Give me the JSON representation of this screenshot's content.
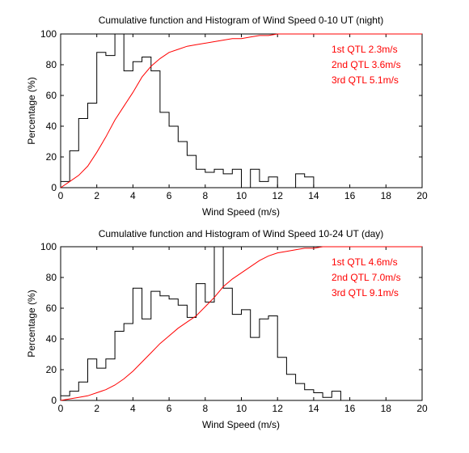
{
  "chart_data": [
    {
      "type": "line",
      "title": "Cumulative function and Histogram of Wind Speed 0-10 UT (night)",
      "xlabel": "Wind Speed (m/s)",
      "ylabel": "Percentage (%)",
      "xlim": [
        0,
        20
      ],
      "ylim": [
        0,
        100
      ],
      "xticks": [
        "0",
        "2",
        "4",
        "6",
        "8",
        "10",
        "12",
        "14",
        "16",
        "18",
        "20"
      ],
      "yticks": [
        "0",
        "20",
        "40",
        "60",
        "80",
        "100"
      ],
      "grid": false,
      "series": [
        {
          "kind": "histogram-step",
          "color": "#000000",
          "bin_width": 0.5,
          "bin_start": 0,
          "values": [
            4,
            24,
            45,
            55,
            88,
            86,
            100,
            76,
            82,
            85,
            76,
            49,
            40,
            30,
            21,
            12,
            10,
            12,
            9,
            12,
            0,
            12,
            4,
            7,
            0,
            0,
            9,
            7,
            0
          ]
        },
        {
          "kind": "cumulative",
          "color": "#ff0000",
          "x": [
            0,
            0.5,
            1,
            1.5,
            2,
            2.5,
            3,
            3.5,
            4,
            4.5,
            5,
            5.5,
            6,
            6.5,
            7,
            7.5,
            8,
            8.5,
            9,
            9.5,
            10,
            10.5,
            11,
            11.5,
            12,
            13,
            14,
            15,
            20
          ],
          "y": [
            0,
            4,
            8,
            14,
            23,
            33,
            44,
            53,
            62,
            72,
            79,
            84,
            88,
            90,
            92,
            93,
            94,
            95,
            96,
            97,
            97,
            98,
            99,
            99,
            100,
            100,
            100,
            100,
            100
          ]
        }
      ],
      "annotations": [
        "1st QTL 2.3m/s",
        "2nd QTL 3.6m/s",
        "3rd QTL 5.1m/s"
      ],
      "annotation_color": "#ff0000"
    },
    {
      "type": "line",
      "title": "Cumulative function and Histogram of Wind Speed 10-24 UT (day)",
      "xlabel": "Wind Speed (m/s)",
      "ylabel": "Percentage (%)",
      "xlim": [
        0,
        20
      ],
      "ylim": [
        0,
        100
      ],
      "xticks": [
        "0",
        "2",
        "4",
        "6",
        "8",
        "10",
        "12",
        "14",
        "16",
        "18",
        "20"
      ],
      "yticks": [
        "0",
        "20",
        "40",
        "60",
        "80",
        "100"
      ],
      "grid": false,
      "series": [
        {
          "kind": "histogram-step",
          "color": "#000000",
          "bin_width": 0.5,
          "bin_start": 0,
          "values": [
            3,
            6,
            12,
            27,
            21,
            27,
            45,
            50,
            73,
            53,
            71,
            68,
            66,
            62,
            54,
            76,
            64,
            100,
            73,
            56,
            59,
            41,
            53,
            55,
            28,
            17,
            11,
            7,
            5,
            2,
            6
          ]
        },
        {
          "kind": "cumulative",
          "color": "#ff0000",
          "x": [
            0,
            0.5,
            1,
            1.5,
            2,
            2.5,
            3,
            3.5,
            4,
            4.5,
            5,
            5.5,
            6,
            6.5,
            7,
            7.5,
            8,
            8.5,
            9,
            9.5,
            10,
            10.5,
            11,
            11.5,
            12,
            12.5,
            13,
            13.5,
            14,
            14.5,
            15,
            20
          ],
          "y": [
            0,
            1,
            2,
            3,
            5,
            7,
            10,
            14,
            19,
            25,
            31,
            37,
            42,
            47,
            51,
            55,
            61,
            67,
            74,
            79,
            83,
            87,
            91,
            94,
            96,
            97,
            98,
            99,
            99,
            100,
            100,
            100
          ]
        }
      ],
      "annotations": [
        "1st QTL 4.6m/s",
        "2nd QTL 7.0m/s",
        "3rd QTL 9.1m/s"
      ],
      "annotation_color": "#ff0000"
    }
  ]
}
